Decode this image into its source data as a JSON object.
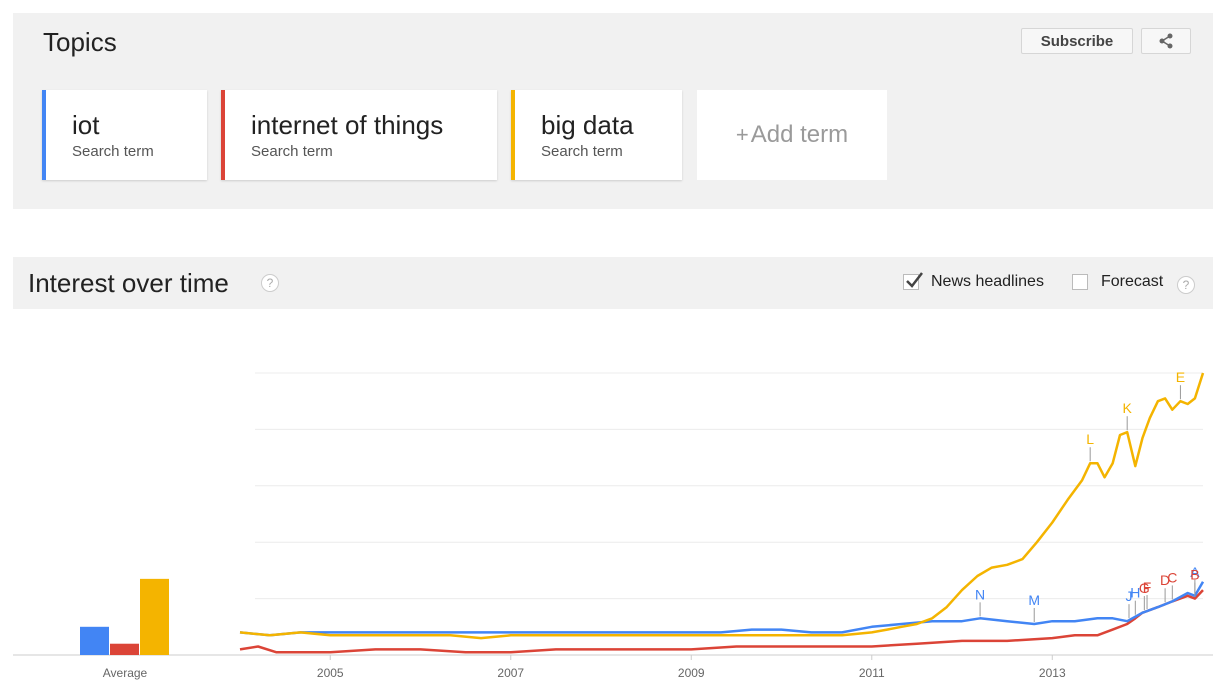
{
  "topics": {
    "title": "Topics",
    "subscribe_label": "Subscribe",
    "share_icon": "share-icon",
    "terms": [
      {
        "name": "iot",
        "sub": "Search term",
        "color": "#4285f4"
      },
      {
        "name": "internet of things",
        "sub": "Search term",
        "color": "#db4437"
      },
      {
        "name": "big data",
        "sub": "Search term",
        "color": "#f4b400"
      }
    ],
    "add_term_label": "Add term",
    "add_term_plus": "+"
  },
  "interest": {
    "title": "Interest over time",
    "help_glyph": "?",
    "news_label": "News headlines",
    "news_checked": true,
    "forecast_label": "Forecast",
    "forecast_checked": false
  },
  "chart_data": {
    "type": "line",
    "x_range": [
      2004.0,
      2014.67
    ],
    "y_range": [
      0,
      100
    ],
    "x_ticks": [
      {
        "value": 2005,
        "label": "2005"
      },
      {
        "value": 2007,
        "label": "2007"
      },
      {
        "value": 2009,
        "label": "2009"
      },
      {
        "value": 2011,
        "label": "2011"
      },
      {
        "value": 2013,
        "label": "2013"
      }
    ],
    "average": {
      "label": "Average",
      "values": [
        {
          "series": "iot",
          "value": 10
        },
        {
          "series": "internet of things",
          "value": 4
        },
        {
          "series": "big data",
          "value": 27
        }
      ]
    },
    "series": [
      {
        "name": "iot",
        "color": "#4285f4",
        "points": [
          [
            2004.0,
            8
          ],
          [
            2004.33,
            7
          ],
          [
            2004.67,
            8
          ],
          [
            2005.0,
            8
          ],
          [
            2005.33,
            8
          ],
          [
            2005.67,
            8
          ],
          [
            2006.0,
            8
          ],
          [
            2006.33,
            8
          ],
          [
            2006.67,
            8
          ],
          [
            2007.0,
            8
          ],
          [
            2007.33,
            8
          ],
          [
            2007.67,
            8
          ],
          [
            2008.0,
            8
          ],
          [
            2008.33,
            8
          ],
          [
            2008.67,
            8
          ],
          [
            2009.0,
            8
          ],
          [
            2009.33,
            8
          ],
          [
            2009.67,
            9
          ],
          [
            2010.0,
            9
          ],
          [
            2010.33,
            8
          ],
          [
            2010.67,
            8
          ],
          [
            2011.0,
            10
          ],
          [
            2011.33,
            11
          ],
          [
            2011.67,
            12
          ],
          [
            2012.0,
            12
          ],
          [
            2012.2,
            13
          ],
          [
            2012.5,
            12
          ],
          [
            2012.8,
            11
          ],
          [
            2013.0,
            12
          ],
          [
            2013.25,
            12
          ],
          [
            2013.5,
            13
          ],
          [
            2013.67,
            13
          ],
          [
            2013.83,
            12
          ],
          [
            2014.0,
            15
          ],
          [
            2014.17,
            17
          ],
          [
            2014.33,
            19
          ],
          [
            2014.5,
            22
          ],
          [
            2014.58,
            21
          ],
          [
            2014.67,
            26
          ]
        ]
      },
      {
        "name": "internet of things",
        "color": "#db4437",
        "points": [
          [
            2004.0,
            2
          ],
          [
            2004.2,
            3
          ],
          [
            2004.4,
            1
          ],
          [
            2005.0,
            1
          ],
          [
            2005.5,
            2
          ],
          [
            2006.0,
            2
          ],
          [
            2006.5,
            1
          ],
          [
            2007.0,
            1
          ],
          [
            2007.5,
            2
          ],
          [
            2008.0,
            2
          ],
          [
            2008.5,
            2
          ],
          [
            2009.0,
            2
          ],
          [
            2009.5,
            3
          ],
          [
            2010.0,
            3
          ],
          [
            2010.5,
            3
          ],
          [
            2011.0,
            3
          ],
          [
            2011.5,
            4
          ],
          [
            2012.0,
            5
          ],
          [
            2012.5,
            5
          ],
          [
            2013.0,
            6
          ],
          [
            2013.25,
            7
          ],
          [
            2013.5,
            7
          ],
          [
            2013.67,
            9
          ],
          [
            2013.83,
            11
          ],
          [
            2013.92,
            13
          ],
          [
            2014.0,
            15
          ],
          [
            2014.17,
            17
          ],
          [
            2014.33,
            19
          ],
          [
            2014.5,
            21
          ],
          [
            2014.58,
            20
          ],
          [
            2014.67,
            23
          ]
        ]
      },
      {
        "name": "big data",
        "color": "#f4b400",
        "points": [
          [
            2004.0,
            8
          ],
          [
            2004.33,
            7
          ],
          [
            2004.67,
            8
          ],
          [
            2005.0,
            7
          ],
          [
            2005.33,
            7
          ],
          [
            2005.67,
            7
          ],
          [
            2006.0,
            7
          ],
          [
            2006.33,
            7
          ],
          [
            2006.67,
            6
          ],
          [
            2007.0,
            7
          ],
          [
            2007.33,
            7
          ],
          [
            2007.67,
            7
          ],
          [
            2008.0,
            7
          ],
          [
            2008.33,
            7
          ],
          [
            2008.67,
            7
          ],
          [
            2009.0,
            7
          ],
          [
            2009.33,
            7
          ],
          [
            2009.67,
            7
          ],
          [
            2010.0,
            7
          ],
          [
            2010.33,
            7
          ],
          [
            2010.67,
            7
          ],
          [
            2011.0,
            8
          ],
          [
            2011.17,
            9
          ],
          [
            2011.33,
            10
          ],
          [
            2011.5,
            11
          ],
          [
            2011.67,
            13
          ],
          [
            2011.83,
            17
          ],
          [
            2012.0,
            23
          ],
          [
            2012.17,
            28
          ],
          [
            2012.33,
            31
          ],
          [
            2012.5,
            32
          ],
          [
            2012.67,
            34
          ],
          [
            2012.83,
            40
          ],
          [
            2013.0,
            47
          ],
          [
            2013.17,
            55
          ],
          [
            2013.33,
            62
          ],
          [
            2013.42,
            68
          ],
          [
            2013.5,
            68
          ],
          [
            2013.58,
            63
          ],
          [
            2013.67,
            68
          ],
          [
            2013.75,
            78
          ],
          [
            2013.83,
            79
          ],
          [
            2013.92,
            67
          ],
          [
            2014.0,
            77
          ],
          [
            2014.08,
            84
          ],
          [
            2014.17,
            90
          ],
          [
            2014.25,
            91
          ],
          [
            2014.33,
            87
          ],
          [
            2014.42,
            90
          ],
          [
            2014.5,
            89
          ],
          [
            2014.58,
            91
          ],
          [
            2014.67,
            100
          ]
        ]
      }
    ],
    "annotations": [
      {
        "letter": "A",
        "series": "iot",
        "x": 2014.58
      },
      {
        "letter": "B",
        "series": "internet of things",
        "x": 2014.58
      },
      {
        "letter": "C",
        "series": "internet of things",
        "x": 2014.33
      },
      {
        "letter": "D",
        "series": "internet of things",
        "x": 2014.25
      },
      {
        "letter": "E",
        "series": "big data",
        "x": 2014.42
      },
      {
        "letter": "F",
        "series": "internet of things",
        "x": 2014.05
      },
      {
        "letter": "G",
        "series": "internet of things",
        "x": 2014.02
      },
      {
        "letter": "H",
        "series": "iot",
        "x": 2013.92
      },
      {
        "letter": "J",
        "series": "iot",
        "x": 2013.85
      },
      {
        "letter": "K",
        "series": "big data",
        "x": 2013.83
      },
      {
        "letter": "L",
        "series": "big data",
        "x": 2013.42
      },
      {
        "letter": "M",
        "series": "iot",
        "x": 2012.8
      },
      {
        "letter": "N",
        "series": "iot",
        "x": 2012.2
      }
    ]
  }
}
